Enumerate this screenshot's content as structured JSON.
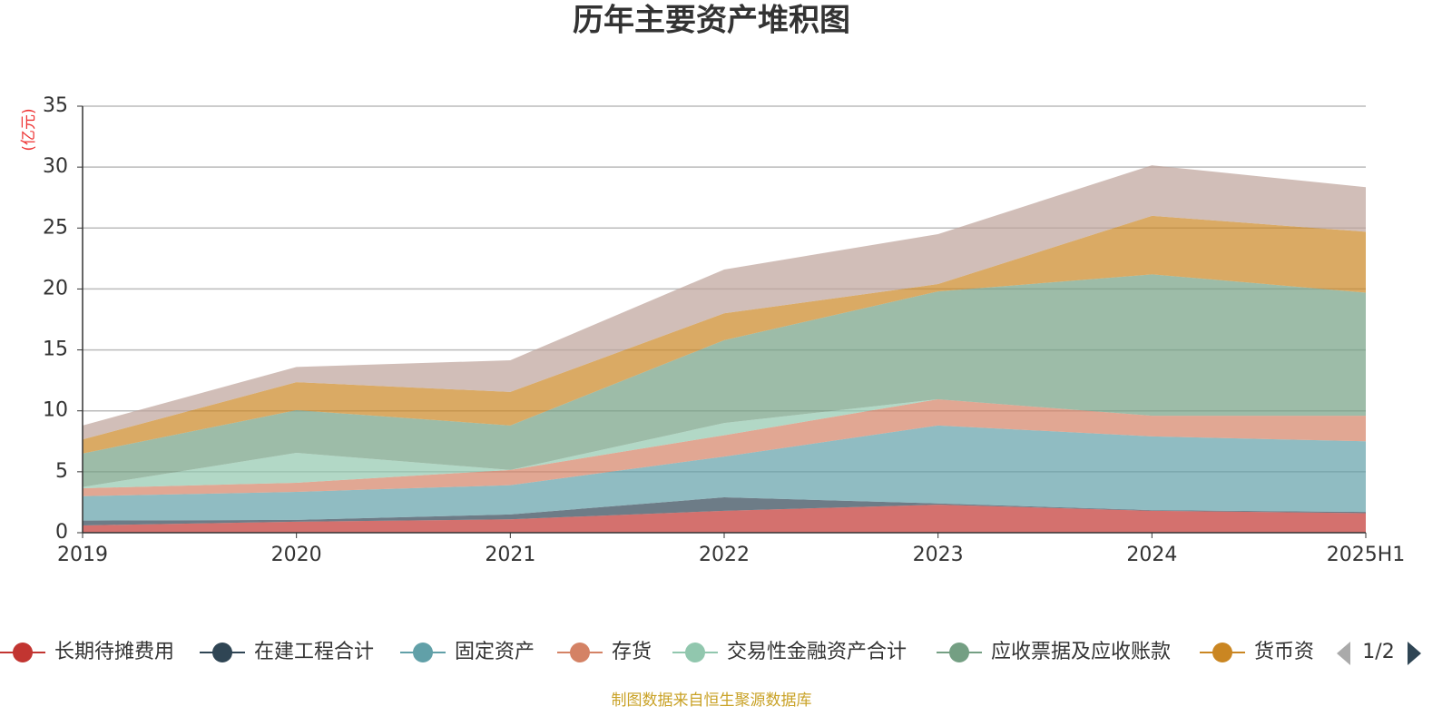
{
  "chart_data": {
    "type": "stacked-area",
    "title": "历年主要资产堆积图",
    "y_label": "(亿元)",
    "categories": [
      "2019",
      "2020",
      "2021",
      "2022",
      "2023",
      "2024",
      "2025H1"
    ],
    "ylim": [
      0,
      35
    ],
    "yticks": [
      0,
      5,
      10,
      15,
      20,
      25,
      30,
      35
    ],
    "grid": true,
    "series": [
      {
        "name": "长期待摊费用",
        "color": "#c23531",
        "values": [
          0.6,
          0.9,
          1.1,
          1.8,
          2.3,
          1.8,
          1.6
        ]
      },
      {
        "name": "在建工程合计",
        "color": "#2f4554",
        "values": [
          0.4,
          0.15,
          0.4,
          1.1,
          0.1,
          0.05,
          0.1
        ]
      },
      {
        "name": "固定资产",
        "color": "#61a0a8",
        "values": [
          2.0,
          2.3,
          2.4,
          3.35,
          6.4,
          6.05,
          5.8
        ]
      },
      {
        "name": "存货",
        "color": "#d48265",
        "values": [
          0.65,
          0.75,
          1.25,
          1.75,
          2.15,
          1.7,
          2.1
        ]
      },
      {
        "name": "交易性金融资产合计",
        "color": "#91c7ae",
        "values": [
          0.1,
          2.45,
          0,
          1.0,
          0,
          0,
          0
        ]
      },
      {
        "name": "应收票据及应收账款",
        "color": "#749f83",
        "values": [
          2.75,
          3.5,
          3.65,
          6.8,
          8.85,
          11.6,
          10.1
        ]
      },
      {
        "name": "货币资",
        "color": "#ca8622",
        "values": [
          1.15,
          2.3,
          2.75,
          2.2,
          0.6,
          4.8,
          5.0
        ]
      },
      {
        "color": "#bda29a",
        "values": [
          1.15,
          1.25,
          2.6,
          3.6,
          4.1,
          4.15,
          3.65
        ]
      }
    ],
    "legend_page": "1/2",
    "source": "制图数据来自恒生聚源数据库"
  }
}
